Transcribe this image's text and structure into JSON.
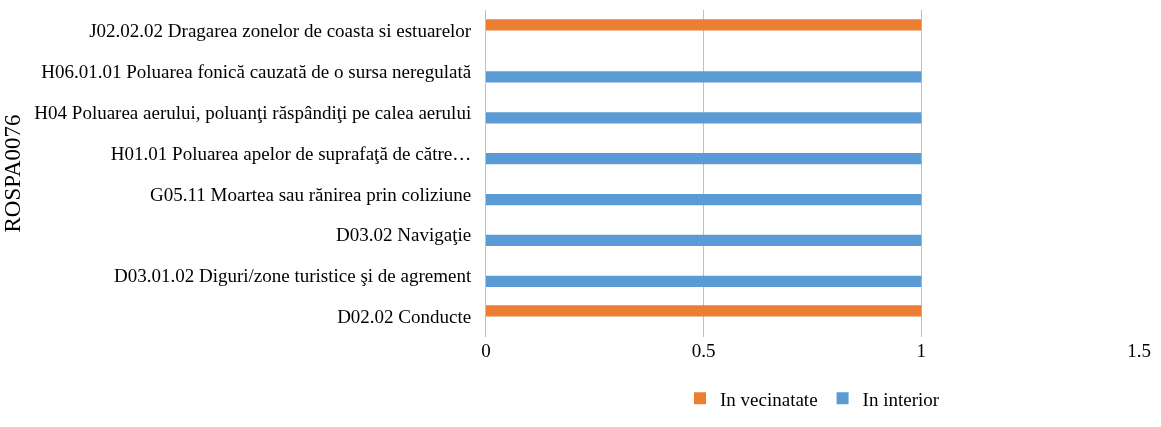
{
  "chart_data": {
    "type": "bar",
    "orientation": "horizontal",
    "ylabel": "ROSPA0076",
    "categories": [
      "J02.02.02 Dragarea zonelor de coasta si estuarelor",
      "H06.01.01 Poluarea fonică cauzată de o sursa neregulată",
      "H04 Poluarea aerului, poluanţi răspândiţi pe calea aerului",
      "H01.01 Poluarea apelor de suprafaţă de către…",
      "G05.11 Moartea sau rănirea prin coliziune",
      "D03.02 Navigaţie",
      "D03.01.02 Diguri/zone turistice şi de agrement",
      "D02.02 Conducte"
    ],
    "series": [
      {
        "name": "In vecinatate",
        "color": "#ed7d31",
        "values": [
          1,
          null,
          null,
          null,
          null,
          null,
          null,
          1
        ]
      },
      {
        "name": "In interior",
        "color": "#5b9bd5",
        "values": [
          null,
          1,
          1,
          1,
          1,
          1,
          1,
          null
        ]
      }
    ],
    "xlim": [
      0,
      1.5
    ],
    "xticks": [
      0,
      0.5,
      1,
      1.5
    ],
    "grid": "x",
    "legend": "bottom"
  }
}
